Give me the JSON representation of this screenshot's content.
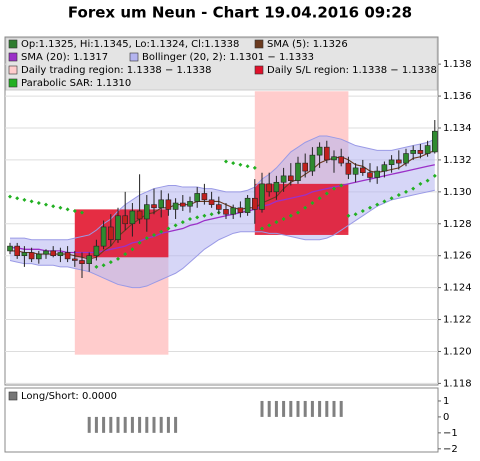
{
  "chart_data": {
    "type": "candlestick",
    "title": "Forex um Neun - Chart 19.04.2016 09:28",
    "ohlc": [
      [
        1.1263,
        1.1268,
        1.1261,
        1.1266
      ],
      [
        1.1266,
        1.1268,
        1.1258,
        1.126
      ],
      [
        1.126,
        1.1266,
        1.1253,
        1.1262
      ],
      [
        1.1262,
        1.1265,
        1.1256,
        1.1258
      ],
      [
        1.1258,
        1.1263,
        1.1255,
        1.1261
      ],
      [
        1.1261,
        1.1264,
        1.1258,
        1.1263
      ],
      [
        1.1263,
        1.1266,
        1.1259,
        1.126
      ],
      [
        1.126,
        1.1265,
        1.1256,
        1.1262
      ],
      [
        1.1262,
        1.1266,
        1.1256,
        1.1258
      ],
      [
        1.1258,
        1.1263,
        1.1253,
        1.1257
      ],
      [
        1.1257,
        1.1262,
        1.1246,
        1.1255
      ],
      [
        1.1255,
        1.1262,
        1.125,
        1.126
      ],
      [
        1.126,
        1.127,
        1.1257,
        1.1266
      ],
      [
        1.1266,
        1.1282,
        1.1264,
        1.1278
      ],
      [
        1.1278,
        1.1286,
        1.1266,
        1.127
      ],
      [
        1.127,
        1.129,
        1.1268,
        1.1285
      ],
      [
        1.1285,
        1.13,
        1.1276,
        1.128
      ],
      [
        1.128,
        1.1293,
        1.1272,
        1.1288
      ],
      [
        1.1288,
        1.1311,
        1.128,
        1.1283
      ],
      [
        1.1283,
        1.1298,
        1.1275,
        1.1292
      ],
      [
        1.1292,
        1.1302,
        1.1286,
        1.129
      ],
      [
        1.129,
        1.1301,
        1.1284,
        1.1295
      ],
      [
        1.1295,
        1.1299,
        1.1285,
        1.1289
      ],
      [
        1.1289,
        1.1296,
        1.1283,
        1.1293
      ],
      [
        1.1293,
        1.1298,
        1.1288,
        1.1291
      ],
      [
        1.1291,
        1.1297,
        1.1287,
        1.1294
      ],
      [
        1.1294,
        1.1303,
        1.129,
        1.1299
      ],
      [
        1.1299,
        1.1305,
        1.1292,
        1.1295
      ],
      [
        1.1295,
        1.13,
        1.129,
        1.1292
      ],
      [
        1.1292,
        1.1297,
        1.1286,
        1.1289
      ],
      [
        1.1289,
        1.1293,
        1.1283,
        1.1286
      ],
      [
        1.1286,
        1.1292,
        1.1283,
        1.129
      ],
      [
        1.129,
        1.1294,
        1.1284,
        1.1287
      ],
      [
        1.1287,
        1.1298,
        1.1285,
        1.1296
      ],
      [
        1.1296,
        1.1308,
        1.128,
        1.1289
      ],
      [
        1.1289,
        1.1312,
        1.1287,
        1.1305
      ],
      [
        1.1305,
        1.1312,
        1.1297,
        1.13
      ],
      [
        1.13,
        1.131,
        1.1295,
        1.1306
      ],
      [
        1.1306,
        1.1315,
        1.13,
        1.131
      ],
      [
        1.131,
        1.1318,
        1.1304,
        1.1307
      ],
      [
        1.1307,
        1.1322,
        1.1305,
        1.1318
      ],
      [
        1.1318,
        1.1324,
        1.1309,
        1.1313
      ],
      [
        1.1313,
        1.1328,
        1.131,
        1.1323
      ],
      [
        1.1323,
        1.1331,
        1.1315,
        1.1328
      ],
      [
        1.1328,
        1.1332,
        1.1318,
        1.132
      ],
      [
        1.132,
        1.1326,
        1.1312,
        1.1322
      ],
      [
        1.1322,
        1.1327,
        1.1316,
        1.1318
      ],
      [
        1.1318,
        1.1322,
        1.1308,
        1.1311
      ],
      [
        1.1311,
        1.1318,
        1.1306,
        1.1315
      ],
      [
        1.1315,
        1.132,
        1.131,
        1.1312
      ],
      [
        1.1312,
        1.1318,
        1.1306,
        1.1309
      ],
      [
        1.1309,
        1.1316,
        1.1305,
        1.1313
      ],
      [
        1.1313,
        1.1319,
        1.1309,
        1.1317
      ],
      [
        1.1317,
        1.1323,
        1.1312,
        1.132
      ],
      [
        1.132,
        1.1326,
        1.1314,
        1.1318
      ],
      [
        1.1318,
        1.1327,
        1.1316,
        1.1324
      ],
      [
        1.1324,
        1.1329,
        1.132,
        1.1326
      ],
      [
        1.1326,
        1.133,
        1.1321,
        1.1324
      ],
      [
        1.1324,
        1.1332,
        1.1322,
        1.1329
      ],
      [
        1.1325,
        1.1345,
        1.1324,
        1.1338
      ]
    ],
    "up_color": "#2f8a2f",
    "down_color": "#c0201e",
    "sma5": [
      1.1263,
      1.1263,
      1.1262,
      1.1262,
      1.1261,
      1.1261,
      1.1261,
      1.1261,
      1.1261,
      1.126,
      1.1259,
      1.1258,
      1.1259,
      1.1263,
      1.1266,
      1.1272,
      1.1276,
      1.128,
      1.1283,
      1.1286,
      1.1287,
      1.129,
      1.129,
      1.1292,
      1.1292,
      1.1292,
      1.1294,
      1.1294,
      1.1294,
      1.1294,
      1.1292,
      1.129,
      1.1289,
      1.129,
      1.129,
      1.1293,
      1.1295,
      1.1297,
      1.1302,
      1.1306,
      1.1308,
      1.1311,
      1.1314,
      1.1318,
      1.132,
      1.1321,
      1.1322,
      1.132,
      1.1317,
      1.1316,
      1.1313,
      1.1312,
      1.1313,
      1.1314,
      1.1315,
      1.1318,
      1.1321,
      1.1322,
      1.1324,
      1.1326
    ],
    "sma20": [
      1.1265,
      1.1265,
      1.1264,
      1.1264,
      1.1264,
      1.1263,
      1.1263,
      1.1263,
      1.1262,
      1.1262,
      1.1262,
      1.1262,
      1.1262,
      1.1263,
      1.1264,
      1.1265,
      1.1266,
      1.1268,
      1.1269,
      1.1271,
      1.1272,
      1.1274,
      1.1275,
      1.1276,
      1.1277,
      1.1279,
      1.128,
      1.1282,
      1.1283,
      1.1284,
      1.1285,
      1.1286,
      1.1287,
      1.1288,
      1.1289,
      1.1291,
      1.1292,
      1.1294,
      1.1295,
      1.1296,
      1.1297,
      1.1298,
      1.13,
      1.1301,
      1.1302,
      1.1303,
      1.1304,
      1.1305,
      1.1306,
      1.1307,
      1.1308,
      1.1309,
      1.131,
      1.1311,
      1.1312,
      1.1313,
      1.1314,
      1.1315,
      1.1316,
      1.1317
    ],
    "bollinger_upper": [
      1.1271,
      1.1271,
      1.1271,
      1.127,
      1.127,
      1.127,
      1.127,
      1.127,
      1.127,
      1.1271,
      1.1272,
      1.1273,
      1.1276,
      1.128,
      1.1283,
      1.1288,
      1.1292,
      1.1295,
      1.1298,
      1.13,
      1.1302,
      1.1303,
      1.1304,
      1.1304,
      1.1303,
      1.1303,
      1.1303,
      1.1302,
      1.1302,
      1.1301,
      1.13,
      1.13,
      1.13,
      1.1301,
      1.1303,
      1.1308,
      1.1311,
      1.1315,
      1.132,
      1.1325,
      1.1328,
      1.1331,
      1.1333,
      1.1335,
      1.1335,
      1.1334,
      1.1333,
      1.1331,
      1.1329,
      1.1328,
      1.1327,
      1.1326,
      1.1326,
      1.1326,
      1.1327,
      1.1328,
      1.1329,
      1.133,
      1.1331,
      1.1333
    ],
    "bollinger_lower": [
      1.1257,
      1.1256,
      1.1255,
      1.1255,
      1.1254,
      1.1254,
      1.1254,
      1.1253,
      1.1253,
      1.1252,
      1.1251,
      1.125,
      1.1248,
      1.1246,
      1.1244,
      1.1242,
      1.1241,
      1.124,
      1.124,
      1.1241,
      1.1243,
      1.1245,
      1.1247,
      1.1249,
      1.1252,
      1.1256,
      1.126,
      1.1264,
      1.1267,
      1.127,
      1.1272,
      1.1274,
      1.1275,
      1.1275,
      1.1275,
      1.1275,
      1.1274,
      1.1274,
      1.1273,
      1.1272,
      1.1271,
      1.127,
      1.127,
      1.127,
      1.1271,
      1.1273,
      1.1276,
      1.1279,
      1.1282,
      1.1285,
      1.1288,
      1.1291,
      1.1293,
      1.1295,
      1.1296,
      1.1297,
      1.1298,
      1.1299,
      1.13,
      1.1301
    ],
    "sar": [
      1.1297,
      1.1296,
      1.1295,
      1.1294,
      1.1293,
      1.1292,
      1.1291,
      1.129,
      1.1289,
      1.1288,
      1.1287,
      null,
      1.1253,
      1.1254,
      1.1256,
      1.1258,
      1.1261,
      1.1264,
      1.1268,
      1.1271,
      1.1273,
      1.1275,
      1.1277,
      1.1279,
      1.1281,
      1.1283,
      1.1284,
      1.1285,
      1.1286,
      1.1287,
      1.1319,
      1.1318,
      1.1317,
      1.1316,
      1.1315,
      1.1277,
      1.1279,
      1.1281,
      1.1283,
      1.1285,
      1.1287,
      1.129,
      1.1293,
      1.1296,
      1.1299,
      1.1302,
      1.1304,
      1.1285,
      1.1286,
      1.1288,
      1.129,
      1.1292,
      1.1294,
      1.1296,
      1.1298,
      1.13,
      1.1302,
      1.1305,
      1.1307,
      1.131
    ],
    "trading_regions": [
      {
        "start": 9,
        "end": 22,
        "low": 1.1198,
        "high": 1.1289
      },
      {
        "start": 34,
        "end": 47,
        "low": 1.1275,
        "high": 1.1363
      }
    ],
    "sl_regions": [
      {
        "start": 9,
        "end": 22,
        "low": 1.1259,
        "high": 1.1289
      },
      {
        "start": 34,
        "end": 47,
        "low": 1.1273,
        "high": 1.1305
      }
    ],
    "legend": [
      {
        "label": "Op:1.1325, Hi:1.1345, Lo:1.1324, Cl:1.1338",
        "color": "#2f7d2f"
      },
      {
        "label": "SMA (5): 1.1326",
        "color": "#6b3a1f"
      },
      {
        "label": "SMA (20): 1.1317",
        "color": "#9b30c8"
      },
      {
        "label": "Bollinger (20, 2): 1.1301 − 1.1333",
        "color": "#b4b4f0"
      },
      {
        "label": "Daily trading region: 1.1338 − 1.1338",
        "color": "#ffcccc"
      },
      {
        "label": "Daily S/L region: 1.1338 − 1.1338",
        "color": "#e0102a"
      },
      {
        "label": "Parabolic SAR: 1.1310",
        "color": "#22b022"
      }
    ],
    "ylim": [
      1.1179,
      1.1397
    ],
    "yticks": [
      1.118,
      {
        "value": 1.12,
        "label": "1.120"
      },
      1.122,
      1.124,
      1.126,
      1.128,
      {
        "value": 1.13,
        "label": "1.130"
      },
      1.132,
      1.134,
      1.136,
      1.138
    ],
    "grid": true,
    "lower_panel": {
      "legend": {
        "label": "Long/Short: 0.0000",
        "color": "#777777"
      },
      "values": [
        0,
        0,
        0,
        0,
        0,
        0,
        0,
        0,
        0,
        0,
        0,
        -1,
        -1,
        -1,
        -1,
        -1,
        -1,
        -1,
        -1,
        -1,
        -1,
        -1,
        -1,
        -1,
        0,
        0,
        0,
        0,
        0,
        0,
        0,
        0,
        0,
        0,
        0,
        1,
        1,
        1,
        1,
        1,
        1,
        1,
        1,
        1,
        1,
        1,
        1,
        0,
        0,
        0,
        0,
        0,
        0,
        0,
        0,
        0,
        0,
        0,
        0,
        0
      ],
      "color": "#808080",
      "ylim": [
        -2.2,
        1.75
      ],
      "yticks": [
        1,
        0,
        {
          "value": -1,
          "label": "−1"
        },
        {
          "value": -2,
          "label": "−2"
        }
      ]
    }
  }
}
